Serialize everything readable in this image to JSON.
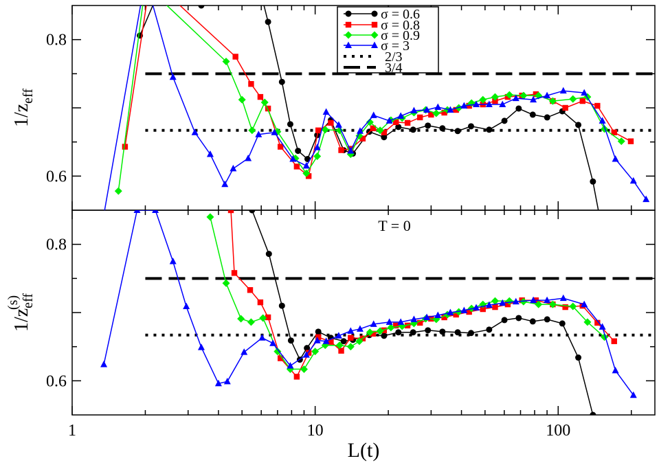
{
  "chart_data": {
    "type": "line",
    "x_scale": "log",
    "xlim": [
      1,
      250
    ],
    "ylim": [
      0.55,
      0.85
    ],
    "xlabel": "L(t)",
    "x_ticks": [
      1,
      10,
      100
    ],
    "x_tick_labels": [
      "1",
      "10",
      "100"
    ],
    "y_ticks": [
      0.6,
      0.8
    ],
    "y_tick_labels": [
      "0.6",
      "0.8"
    ],
    "legend": {
      "placement": "top-center",
      "entries": [
        "σ = 0.6",
        "σ = 0.8",
        "σ = 0.9",
        "σ = 3",
        "2/3",
        "3/4"
      ]
    },
    "colors": {
      "s06": "#000000",
      "s08": "#ff0000",
      "s09": "#00ee00",
      "s3": "#0000ff"
    },
    "panels": [
      {
        "name": "top",
        "ylabel_base": "1/z",
        "ylabel_sub": "eff",
        "ylabel_sup": "",
        "annotation": "",
        "reference_lines": [
          {
            "label": "2/3",
            "y": 0.667,
            "x_from": 2,
            "x_to": 250,
            "style": "dotted"
          },
          {
            "label": "3/4",
            "y": 0.75,
            "x_from": 2,
            "x_to": 250,
            "style": "dashed"
          }
        ],
        "series": [
          {
            "name": "σ = 0.6",
            "key": "s06",
            "marker": "circle",
            "x": [
              1.9,
              2.4,
              3.4,
              4.3,
              5.5,
              6.4,
              7.3,
              7.9,
              8.5,
              9.3,
              10.2,
              11.6,
              13.1,
              14.3,
              16.7,
              19.2,
              22.0,
              25.3,
              29.1,
              33.4,
              38.6,
              43.8,
              52.0,
              60.1,
              68.8,
              78.6,
              90.1,
              104.0,
              121.0,
              139.0,
              150.0
            ],
            "y": [
              0.806,
              0.89,
              0.85,
              0.95,
              0.92,
              0.826,
              0.738,
              0.676,
              0.637,
              0.625,
              0.66,
              0.682,
              0.638,
              0.633,
              0.665,
              0.657,
              0.672,
              0.668,
              0.674,
              0.67,
              0.666,
              0.673,
              0.668,
              0.681,
              0.699,
              0.69,
              0.686,
              0.695,
              0.675,
              0.592,
              0.53
            ]
          },
          {
            "name": "σ = 0.8",
            "key": "s08",
            "marker": "square",
            "x": [
              1.65,
              2.1,
              4.7,
              5.45,
              5.95,
              6.4,
              7.2,
              8.4,
              9.4,
              10.3,
              11.6,
              12.8,
              14.0,
              15.7,
              17.3,
              19.2,
              21.5,
              24.0,
              27.0,
              30.0,
              34.0,
              38.0,
              43.0,
              49.0,
              55.0,
              62.0,
              71.0,
              81.0,
              95.0,
              107.0,
              126.0,
              145.0,
              170.0,
              199.0
            ],
            "y": [
              0.643,
              0.89,
              0.775,
              0.735,
              0.716,
              0.699,
              0.643,
              0.614,
              0.6,
              0.667,
              0.678,
              0.638,
              0.64,
              0.655,
              0.67,
              0.664,
              0.679,
              0.678,
              0.686,
              0.69,
              0.693,
              0.697,
              0.703,
              0.705,
              0.71,
              0.716,
              0.718,
              0.72,
              0.71,
              0.7,
              0.71,
              0.703,
              0.664,
              0.651
            ]
          },
          {
            "name": "σ = 0.9",
            "key": "s09",
            "marker": "diamond",
            "x": [
              1.55,
              2.0,
              4.3,
              5.0,
              5.5,
              6.2,
              7.0,
              8.3,
              9.2,
              10.2,
              11.0,
              12.6,
              14.0,
              15.2,
              16.8,
              18.5,
              20.5,
              22.8,
              25.5,
              28.5,
              31.5,
              35.0,
              39.0,
              44.0,
              49.0,
              55.0,
              63.0,
              72.0,
              83.0,
              95.0,
              115.0,
              132.0,
              155.0,
              182.0
            ],
            "y": [
              0.578,
              0.88,
              0.768,
              0.712,
              0.667,
              0.708,
              0.665,
              0.626,
              0.604,
              0.629,
              0.668,
              0.667,
              0.632,
              0.659,
              0.679,
              0.667,
              0.682,
              0.685,
              0.693,
              0.697,
              0.692,
              0.697,
              0.7,
              0.707,
              0.712,
              0.716,
              0.719,
              0.718,
              0.718,
              0.71,
              0.713,
              0.716,
              0.669,
              0.651
            ]
          },
          {
            "name": "σ = 3",
            "key": "s3",
            "marker": "triangle",
            "x": [
              1.3,
              2.0,
              2.6,
              3.2,
              3.7,
              4.25,
              4.6,
              5.3,
              5.85,
              6.8,
              8.1,
              9.2,
              10.2,
              11.1,
              12.5,
              14.0,
              15.3,
              17.4,
              20.2,
              22.5,
              25.5,
              28.8,
              32.0,
              36.0,
              41.0,
              46.0,
              52.0,
              59.0,
              67.0,
              79.0,
              90.0,
              105.0,
              128.0,
              152.0,
              172.0,
              204.0,
              230.0
            ],
            "y": [
              0.51,
              0.89,
              0.745,
              0.664,
              0.632,
              0.588,
              0.611,
              0.626,
              0.661,
              0.664,
              0.625,
              0.615,
              0.642,
              0.694,
              0.675,
              0.637,
              0.666,
              0.689,
              0.681,
              0.688,
              0.696,
              0.697,
              0.701,
              0.697,
              0.703,
              0.705,
              0.705,
              0.705,
              0.714,
              0.712,
              0.718,
              0.725,
              0.722,
              0.681,
              0.625,
              0.593,
              0.566
            ]
          }
        ]
      },
      {
        "name": "bottom",
        "ylabel_base": "1/z",
        "ylabel_sub": "eff",
        "ylabel_sup": "(s)",
        "annotation": "T = 0",
        "reference_lines": [
          {
            "label": "2/3",
            "y": 0.667,
            "x_from": 2,
            "x_to": 250,
            "style": "dotted"
          },
          {
            "label": "3/4",
            "y": 0.75,
            "x_from": 2,
            "x_to": 250,
            "style": "dashed"
          }
        ],
        "series": [
          {
            "name": "σ = 0.6",
            "key": "s06",
            "marker": "circle",
            "x": [
              5.5,
              6.45,
              7.3,
              7.95,
              8.65,
              9.25,
              10.3,
              11.6,
              13.1,
              14.3,
              16.7,
              19.2,
              22.0,
              25.3,
              29.1,
              33.4,
              38.6,
              43.8,
              52.0,
              60.1,
              68.8,
              78.6,
              90.1,
              104.0,
              121.0,
              139.0,
              150.0
            ],
            "y": [
              0.85,
              0.786,
              0.71,
              0.659,
              0.631,
              0.648,
              0.672,
              0.663,
              0.658,
              0.66,
              0.667,
              0.666,
              0.671,
              0.671,
              0.674,
              0.672,
              0.671,
              0.67,
              0.675,
              0.689,
              0.692,
              0.687,
              0.69,
              0.684,
              0.634,
              0.55,
              0.525
            ]
          },
          {
            "name": "σ = 0.8",
            "key": "s08",
            "marker": "square",
            "x": [
              4.5,
              4.65,
              5.4,
              5.95,
              6.4,
              7.2,
              8.4,
              9.4,
              10.3,
              11.6,
              12.8,
              14.0,
              15.7,
              17.3,
              19.2,
              21.5,
              24.0,
              27.0,
              30.0,
              34.0,
              38.0,
              43.0,
              49.0,
              55.0,
              62.0,
              71.0,
              81.0,
              95.0,
              107.0,
              126.0,
              145.0,
              170.0
            ],
            "y": [
              0.85,
              0.758,
              0.733,
              0.715,
              0.693,
              0.633,
              0.606,
              0.641,
              0.664,
              0.657,
              0.644,
              0.663,
              0.662,
              0.669,
              0.674,
              0.681,
              0.681,
              0.685,
              0.691,
              0.693,
              0.697,
              0.701,
              0.705,
              0.708,
              0.712,
              0.718,
              0.718,
              0.712,
              0.708,
              0.71,
              0.685,
              0.658
            ]
          },
          {
            "name": "σ = 0.9",
            "key": "s09",
            "marker": "diamond",
            "x": [
              3.7,
              4.3,
              4.95,
              5.45,
              6.1,
              7.0,
              7.9,
              9.0,
              10.0,
              11.0,
              12.6,
              14.0,
              15.2,
              16.8,
              18.5,
              20.5,
              22.8,
              25.5,
              28.5,
              31.5,
              35.0,
              39.0,
              44.0,
              49.0,
              55.0,
              63.0,
              72.0,
              83.0,
              95.0,
              115.0,
              132.0,
              155.0
            ],
            "y": [
              0.84,
              0.743,
              0.691,
              0.686,
              0.692,
              0.643,
              0.617,
              0.617,
              0.643,
              0.652,
              0.652,
              0.65,
              0.658,
              0.671,
              0.673,
              0.678,
              0.68,
              0.684,
              0.691,
              0.69,
              0.697,
              0.701,
              0.706,
              0.712,
              0.717,
              0.717,
              0.716,
              0.712,
              0.712,
              0.709,
              0.686,
              0.664
            ]
          },
          {
            "name": "σ = 3",
            "key": "s3",
            "marker": "triangle",
            "x": [
              1.35,
              1.85,
              2.2,
              2.6,
              2.95,
              3.4,
              4.0,
              4.35,
              5.1,
              6.05,
              6.7,
              7.9,
              9.2,
              10.2,
              11.1,
              12.5,
              14.0,
              15.3,
              17.4,
              20.2,
              22.5,
              25.5,
              28.8,
              32.0,
              36.0,
              41.0,
              46.0,
              52.0,
              59.0,
              67.0,
              79.0,
              90.0,
              105.0,
              128.0,
              152.0,
              172.0,
              204.0
            ],
            "y": [
              0.624,
              0.85,
              0.85,
              0.775,
              0.709,
              0.649,
              0.596,
              0.599,
              0.642,
              0.663,
              0.655,
              0.622,
              0.638,
              0.659,
              0.658,
              0.666,
              0.673,
              0.676,
              0.683,
              0.686,
              0.686,
              0.69,
              0.693,
              0.696,
              0.7,
              0.703,
              0.707,
              0.711,
              0.714,
              0.716,
              0.718,
              0.718,
              0.721,
              0.712,
              0.679,
              0.615,
              0.579
            ]
          }
        ]
      }
    ]
  }
}
